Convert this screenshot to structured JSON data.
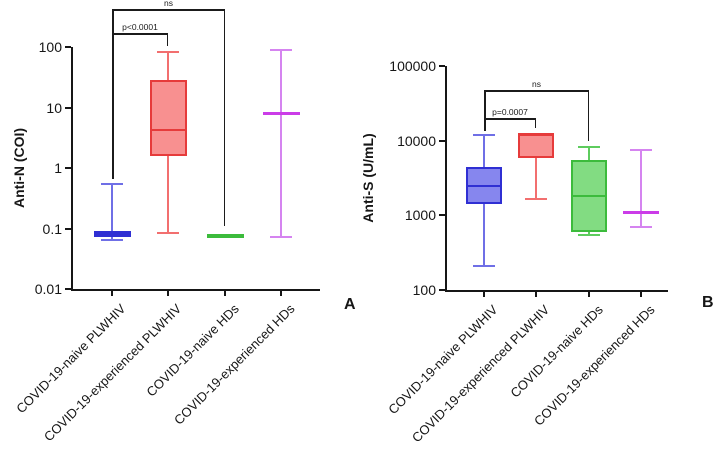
{
  "colors": {
    "axis": "#161616",
    "background": "#ffffff",
    "blue_border": "#2f2fd3",
    "blue_fill": "#8686ee",
    "red_border": "#e63b3b",
    "red_fill": "#f89090",
    "green_border": "#3cbb3c",
    "green_fill": "#82dc82",
    "magenta_border": "#cb3ce8",
    "magenta_whisker": "#d584f0"
  },
  "chart_data": [
    {
      "type": "box",
      "panel_label": "A",
      "ylabel": "Anti-N (COI)",
      "yscale": "log",
      "ylim": [
        0.01,
        100
      ],
      "grid": false,
      "yticks": [
        {
          "value": 100,
          "label": "100"
        },
        {
          "value": 10,
          "label": "10"
        },
        {
          "value": 1,
          "label": "1"
        },
        {
          "value": 0.1,
          "label": "0.1"
        },
        {
          "value": 0.01,
          "label": "0.01"
        }
      ],
      "categories": [
        "COVID-19-naive PLWHIV",
        "COVID-19-experienced PLWHIV",
        "COVID-19-naive HDs",
        "COVID-19-experienced HDs"
      ],
      "series": [
        {
          "name": "COVID-19-naive PLWHIV",
          "colors": {
            "border": "#2f2fd3",
            "fill": "#8686ee",
            "whisker": "#6f6fe6"
          },
          "stats": {
            "min": 0.065,
            "q1": 0.072,
            "median": 0.08,
            "q3": 0.09,
            "max": 0.55
          }
        },
        {
          "name": "COVID-19-experienced PLWHIV",
          "colors": {
            "border": "#e63b3b",
            "fill": "#f89090",
            "whisker": "#f26f6f"
          },
          "stats": {
            "min": 0.085,
            "q1": 1.6,
            "median": 4.2,
            "q3": 29,
            "max": 83
          }
        },
        {
          "name": "COVID-19-naive HDs",
          "colors": {
            "border": "#3cbb3c",
            "fill": "#82dc82",
            "whisker": "#5ecc5e"
          },
          "stats": {
            "min": 0.07,
            "q1": 0.07,
            "median": 0.075,
            "q3": 0.082,
            "max": 0.082
          }
        },
        {
          "name": "COVID-19-experienced HDs",
          "colors": {
            "border": "#cb3ce8",
            "fill": "#e9b6f7",
            "whisker": "#d584f0"
          },
          "stats": {
            "min": 0.072,
            "q1": 8,
            "median": 8,
            "q3": 8,
            "max": 88
          }
        }
      ],
      "annotations": [
        {
          "label": "ns",
          "from": 0,
          "to": 2
        },
        {
          "label": "p<0.0001",
          "from": 0,
          "to": 1
        }
      ]
    },
    {
      "type": "box",
      "panel_label": "B",
      "ylabel": "Anti-S (U/mL)",
      "yscale": "log",
      "ylim": [
        100,
        100000
      ],
      "grid": false,
      "yticks": [
        {
          "value": 100000,
          "label": "100000"
        },
        {
          "value": 10000,
          "label": "10000"
        },
        {
          "value": 1000,
          "label": "1000"
        },
        {
          "value": 100,
          "label": "100"
        }
      ],
      "categories": [
        "COVID-19-naive PLWHIV",
        "COVID-19-experienced PLWHIV",
        "COVID-19-naive HDs",
        "COVID-19-experienced HDs"
      ],
      "series": [
        {
          "name": "COVID-19-naive PLWHIV",
          "colors": {
            "border": "#2f2fd3",
            "fill": "#8686ee",
            "whisker": "#6f6fe6"
          },
          "stats": {
            "min": 210,
            "q1": 1400,
            "median": 2500,
            "q3": 4400,
            "max": 12000
          }
        },
        {
          "name": "COVID-19-experienced PLWHIV",
          "colors": {
            "border": "#e63b3b",
            "fill": "#f89090",
            "whisker": "#f26f6f"
          },
          "stats": {
            "min": 1650,
            "q1": 5800,
            "median": 12000,
            "q3": 12500,
            "max": 12500
          }
        },
        {
          "name": "COVID-19-naive HDs",
          "colors": {
            "border": "#3cbb3c",
            "fill": "#82dc82",
            "whisker": "#5ecc5e"
          },
          "stats": {
            "min": 540,
            "q1": 600,
            "median": 1800,
            "q3": 5500,
            "max": 8300
          }
        },
        {
          "name": "COVID-19-experienced HDs",
          "colors": {
            "border": "#cb3ce8",
            "fill": "#e9b6f7",
            "whisker": "#d584f0"
          },
          "stats": {
            "min": 690,
            "q1": 1080,
            "median": 1080,
            "q3": 1080,
            "max": 7600
          }
        }
      ],
      "annotations": [
        {
          "label": "ns",
          "from": 0,
          "to": 2
        },
        {
          "label": "p=0.0007",
          "from": 0,
          "to": 1
        }
      ]
    }
  ]
}
